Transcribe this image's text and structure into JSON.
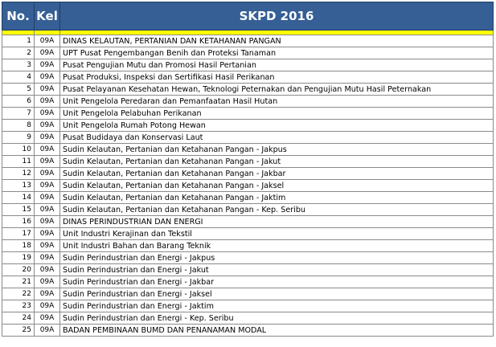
{
  "header": {
    "no": "No.",
    "kel": "Kel",
    "title": "SKPD 2016"
  },
  "rows": [
    {
      "no": "1",
      "kel": "09A",
      "name": "DINAS KELAUTAN, PERTANIAN DAN KETAHANAN PANGAN"
    },
    {
      "no": "2",
      "kel": "09A",
      "name": "UPT Pusat Pengembangan Benih dan Proteksi Tanaman"
    },
    {
      "no": "3",
      "kel": "09A",
      "name": "Pusat Pengujian Mutu dan Promosi Hasil Pertanian"
    },
    {
      "no": "4",
      "kel": "09A",
      "name": "Pusat Produksi, Inspeksi dan Sertifikasi Hasil Perikanan"
    },
    {
      "no": "5",
      "kel": "09A",
      "name": "Pusat Pelayanan Kesehatan Hewan, Teknologi Peternakan dan Pengujian Mutu Hasil Peternakan"
    },
    {
      "no": "6",
      "kel": "09A",
      "name": "Unit Pengelola Peredaran dan Pemanfaatan Hasil Hutan"
    },
    {
      "no": "7",
      "kel": "09A",
      "name": "Unit Pengelola Pelabuhan Perikanan"
    },
    {
      "no": "8",
      "kel": "09A",
      "name": "Unit Pengelola Rumah Potong Hewan"
    },
    {
      "no": "9",
      "kel": "09A",
      "name": "Pusat Budidaya dan Konservasi Laut"
    },
    {
      "no": "10",
      "kel": "09A",
      "name": "Sudin Kelautan, Pertanian dan Ketahanan Pangan - Jakpus"
    },
    {
      "no": "11",
      "kel": "09A",
      "name": "Sudin Kelautan, Pertanian dan Ketahanan Pangan - Jakut"
    },
    {
      "no": "12",
      "kel": "09A",
      "name": "Sudin Kelautan, Pertanian dan Ketahanan Pangan - Jakbar"
    },
    {
      "no": "13",
      "kel": "09A",
      "name": "Sudin Kelautan, Pertanian dan Ketahanan Pangan - Jaksel"
    },
    {
      "no": "14",
      "kel": "09A",
      "name": "Sudin Kelautan, Pertanian dan Ketahanan Pangan - Jaktim"
    },
    {
      "no": "15",
      "kel": "09A",
      "name": "Sudin Kelautan, Pertanian dan Ketahanan Pangan - Kep. Seribu"
    },
    {
      "no": "16",
      "kel": "09A",
      "name": "DINAS PERINDUSTRIAN DAN ENERGI"
    },
    {
      "no": "17",
      "kel": "09A",
      "name": "Unit Industri Kerajinan dan Tekstil"
    },
    {
      "no": "18",
      "kel": "09A",
      "name": "Unit Industri Bahan dan Barang Teknik"
    },
    {
      "no": "19",
      "kel": "09A",
      "name": "Sudin Perindustrian dan Energi - Jakpus"
    },
    {
      "no": "20",
      "kel": "09A",
      "name": "Sudin Perindustrian dan Energi - Jakut"
    },
    {
      "no": "21",
      "kel": "09A",
      "name": "Sudin Perindustrian dan Energi - Jakbar"
    },
    {
      "no": "22",
      "kel": "09A",
      "name": "Sudin Perindustrian dan Energi - Jaksel"
    },
    {
      "no": "23",
      "kel": "09A",
      "name": "Sudin Perindustrian dan Energi - Jaktim"
    },
    {
      "no": "24",
      "kel": "09A",
      "name": "Sudin Perindustrian dan Energi - Kep. Seribu"
    },
    {
      "no": "25",
      "kel": "09A",
      "name": "BADAN PEMBINAAN BUMD DAN PENANAMAN MODAL"
    }
  ],
  "colors": {
    "header_bg": "#355f95",
    "header_text": "#ffffff",
    "band": "#ffff00",
    "grid": "#8a8a8a"
  }
}
